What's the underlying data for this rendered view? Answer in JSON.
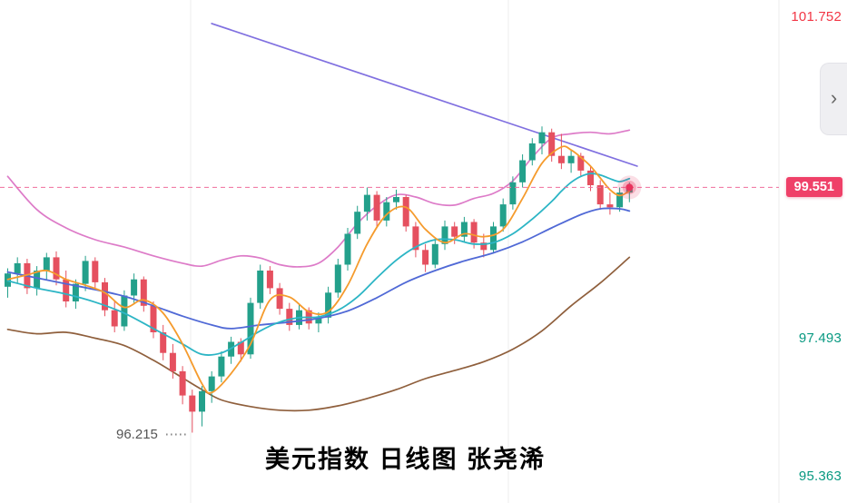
{
  "ui": {
    "chevron": "›"
  },
  "chart_data": {
    "type": "candlestick",
    "title": "美元指数 日线图 张尧浠",
    "current_price": 99.551,
    "price_axis": {
      "visible_labels": [
        {
          "value": 101.752,
          "text": "101.752",
          "color": "#f23645",
          "role": "high"
        },
        {
          "value": 99.551,
          "text": "99.551",
          "color": "#ef4068",
          "role": "current-price-badge"
        },
        {
          "value": 97.493,
          "text": "97.493",
          "color": "#089981",
          "role": "level"
        },
        {
          "value": 95.363,
          "text": "95.363",
          "color": "#089981",
          "role": "level"
        }
      ],
      "low_annotation": {
        "value": 96.215,
        "text": "96.215"
      }
    },
    "style": {
      "up": "#23a08b",
      "down": "#e5505f",
      "grid": "#ececec",
      "current_line": "#f06e9c",
      "dot": "#e8315b",
      "background": "#ffffff"
    },
    "candles": {
      "format": [
        "open",
        "high",
        "low",
        "close"
      ],
      "values": [
        [
          98.2,
          98.45,
          98.05,
          98.38
        ],
        [
          98.38,
          98.6,
          98.25,
          98.52
        ],
        [
          98.52,
          98.58,
          98.1,
          98.18
        ],
        [
          98.18,
          98.48,
          98.08,
          98.42
        ],
        [
          98.42,
          98.66,
          98.3,
          98.6
        ],
        [
          98.6,
          98.68,
          98.22,
          98.3
        ],
        [
          98.3,
          98.42,
          97.92,
          98.0
        ],
        [
          98.0,
          98.3,
          97.9,
          98.24
        ],
        [
          98.24,
          98.62,
          98.14,
          98.55
        ],
        [
          98.55,
          98.6,
          98.18,
          98.26
        ],
        [
          98.26,
          98.32,
          97.8,
          97.88
        ],
        [
          97.88,
          98.0,
          97.58,
          97.66
        ],
        [
          97.66,
          98.15,
          97.6,
          98.08
        ],
        [
          98.08,
          98.38,
          97.98,
          98.3
        ],
        [
          98.3,
          98.34,
          97.86,
          97.94
        ],
        [
          97.94,
          98.0,
          97.5,
          97.58
        ],
        [
          97.58,
          97.68,
          97.2,
          97.3
        ],
        [
          97.3,
          97.42,
          96.95,
          97.05
        ],
        [
          97.05,
          97.12,
          96.6,
          96.72
        ],
        [
          96.72,
          96.8,
          96.215,
          96.5
        ],
        [
          96.5,
          96.85,
          96.3,
          96.78
        ],
        [
          96.78,
          97.05,
          96.62,
          96.98
        ],
        [
          96.98,
          97.32,
          96.9,
          97.25
        ],
        [
          97.25,
          97.52,
          97.15,
          97.45
        ],
        [
          97.45,
          97.5,
          97.18,
          97.28
        ],
        [
          97.28,
          98.05,
          97.22,
          97.98
        ],
        [
          97.98,
          98.5,
          97.9,
          98.42
        ],
        [
          98.42,
          98.48,
          98.1,
          98.18
        ],
        [
          98.18,
          98.25,
          97.82,
          97.9
        ],
        [
          97.9,
          97.98,
          97.6,
          97.68
        ],
        [
          97.68,
          97.95,
          97.62,
          97.88
        ],
        [
          97.88,
          97.92,
          97.62,
          97.7
        ],
        [
          97.7,
          97.85,
          97.58,
          97.78
        ],
        [
          97.78,
          98.2,
          97.7,
          98.12
        ],
        [
          98.12,
          98.58,
          98.05,
          98.5
        ],
        [
          98.5,
          99.0,
          98.42,
          98.92
        ],
        [
          98.92,
          99.3,
          98.85,
          99.22
        ],
        [
          99.22,
          99.55,
          99.1,
          99.45
        ],
        [
          99.45,
          99.5,
          99.0,
          99.1
        ],
        [
          99.1,
          99.42,
          99.02,
          99.35
        ],
        [
          99.35,
          99.52,
          99.25,
          99.42
        ],
        [
          99.42,
          99.45,
          98.95,
          99.02
        ],
        [
          99.02,
          99.08,
          98.6,
          98.7
        ],
        [
          98.7,
          98.78,
          98.4,
          98.5
        ],
        [
          98.5,
          98.85,
          98.45,
          98.78
        ],
        [
          98.78,
          99.1,
          98.7,
          99.02
        ],
        [
          99.02,
          99.08,
          98.78,
          98.88
        ],
        [
          98.88,
          99.15,
          98.8,
          99.08
        ],
        [
          99.08,
          99.12,
          98.72,
          98.8
        ],
        [
          98.8,
          98.92,
          98.6,
          98.7
        ],
        [
          98.7,
          99.08,
          98.65,
          99.02
        ],
        [
          99.02,
          99.4,
          98.95,
          99.32
        ],
        [
          99.32,
          99.7,
          99.25,
          99.62
        ],
        [
          99.62,
          100.0,
          99.55,
          99.92
        ],
        [
          99.92,
          100.22,
          99.85,
          100.15
        ],
        [
          100.15,
          100.38,
          100.0,
          100.3
        ],
        [
          100.3,
          100.35,
          99.9,
          99.98
        ],
        [
          99.98,
          100.28,
          99.8,
          99.88
        ],
        [
          99.88,
          100.05,
          99.75,
          99.98
        ],
        [
          99.98,
          100.02,
          99.7,
          99.78
        ],
        [
          99.78,
          99.85,
          99.5,
          99.58
        ],
        [
          99.58,
          99.65,
          99.25,
          99.32
        ],
        [
          99.32,
          99.48,
          99.18,
          99.28
        ],
        [
          99.28,
          99.55,
          99.22,
          99.48
        ],
        [
          99.48,
          99.62,
          99.35,
          99.551
        ]
      ]
    },
    "overlays": [
      {
        "name": "bollinger-lower",
        "color": "#8f5f3c",
        "width": 1.7,
        "points": [
          [
            0,
            97.62
          ],
          [
            3,
            97.56
          ],
          [
            6,
            97.58
          ],
          [
            9,
            97.5
          ],
          [
            12,
            97.4
          ],
          [
            15,
            97.2
          ],
          [
            18,
            96.96
          ],
          [
            20,
            96.8
          ],
          [
            22,
            96.66
          ],
          [
            25,
            96.57
          ],
          [
            28,
            96.52
          ],
          [
            31,
            96.52
          ],
          [
            34,
            96.58
          ],
          [
            37,
            96.68
          ],
          [
            40,
            96.8
          ],
          [
            43,
            96.95
          ],
          [
            46,
            97.06
          ],
          [
            49,
            97.18
          ],
          [
            52,
            97.35
          ],
          [
            55,
            97.6
          ],
          [
            58,
            97.94
          ],
          [
            61,
            98.25
          ],
          [
            64,
            98.6
          ]
        ]
      },
      {
        "name": "bollinger-upper",
        "color": "#dd7bc8",
        "width": 1.7,
        "points": [
          [
            0,
            99.7
          ],
          [
            3,
            99.25
          ],
          [
            6,
            99.0
          ],
          [
            9,
            98.84
          ],
          [
            12,
            98.74
          ],
          [
            15,
            98.62
          ],
          [
            18,
            98.52
          ],
          [
            20,
            98.48
          ],
          [
            22,
            98.56
          ],
          [
            24,
            98.62
          ],
          [
            26,
            98.59
          ],
          [
            28,
            98.5
          ],
          [
            30,
            98.47
          ],
          [
            32,
            98.52
          ],
          [
            34,
            98.74
          ],
          [
            36,
            99.06
          ],
          [
            38,
            99.3
          ],
          [
            40,
            99.45
          ],
          [
            42,
            99.42
          ],
          [
            44,
            99.33
          ],
          [
            46,
            99.31
          ],
          [
            48,
            99.4
          ],
          [
            50,
            99.47
          ],
          [
            52,
            99.64
          ],
          [
            54,
            99.96
          ],
          [
            56,
            100.22
          ],
          [
            58,
            100.28
          ],
          [
            60,
            100.3
          ],
          [
            62,
            100.28
          ],
          [
            64,
            100.33
          ]
        ]
      },
      {
        "name": "descending-trendline",
        "color": "#8070e0",
        "width": 1.7,
        "points": [
          [
            21,
            101.78
          ],
          [
            42,
            100.85
          ],
          [
            64.8,
            99.84
          ]
        ]
      },
      {
        "name": "ma-slow-blue",
        "color": "#5069d6",
        "width": 1.8,
        "points": [
          [
            0,
            98.4
          ],
          [
            3,
            98.32
          ],
          [
            6,
            98.24
          ],
          [
            9,
            98.16
          ],
          [
            12,
            98.07
          ],
          [
            15,
            97.94
          ],
          [
            18,
            97.8
          ],
          [
            21,
            97.68
          ],
          [
            23,
            97.63
          ],
          [
            26,
            97.68
          ],
          [
            29,
            97.72
          ],
          [
            32,
            97.77
          ],
          [
            35,
            97.87
          ],
          [
            38,
            98.05
          ],
          [
            41,
            98.26
          ],
          [
            44,
            98.42
          ],
          [
            47,
            98.55
          ],
          [
            50,
            98.66
          ],
          [
            53,
            98.81
          ],
          [
            56,
            99.0
          ],
          [
            59,
            99.18
          ],
          [
            61,
            99.26
          ],
          [
            63,
            99.26
          ],
          [
            64,
            99.23
          ]
        ]
      },
      {
        "name": "ma-mid-cyan",
        "color": "#2cb5c5",
        "width": 1.8,
        "points": [
          [
            0,
            98.28
          ],
          [
            3,
            98.18
          ],
          [
            6,
            98.1
          ],
          [
            9,
            97.99
          ],
          [
            12,
            97.84
          ],
          [
            15,
            97.63
          ],
          [
            18,
            97.42
          ],
          [
            20,
            97.28
          ],
          [
            22,
            97.3
          ],
          [
            24,
            97.44
          ],
          [
            26,
            97.6
          ],
          [
            28,
            97.72
          ],
          [
            30,
            97.78
          ],
          [
            32,
            97.79
          ],
          [
            34,
            97.88
          ],
          [
            36,
            98.06
          ],
          [
            38,
            98.32
          ],
          [
            40,
            98.56
          ],
          [
            42,
            98.74
          ],
          [
            44,
            98.84
          ],
          [
            46,
            98.84
          ],
          [
            48,
            98.78
          ],
          [
            50,
            98.8
          ],
          [
            52,
            98.92
          ],
          [
            54,
            99.12
          ],
          [
            56,
            99.36
          ],
          [
            57,
            99.5
          ],
          [
            58,
            99.62
          ],
          [
            59,
            99.7
          ],
          [
            60,
            99.74
          ],
          [
            61,
            99.72
          ],
          [
            62,
            99.67
          ],
          [
            63,
            99.63
          ],
          [
            64,
            99.67
          ]
        ]
      },
      {
        "name": "ma-fast-orange",
        "color": "#f59b2d",
        "width": 1.8,
        "points": [
          [
            0,
            98.3
          ],
          [
            2,
            98.36
          ],
          [
            4,
            98.42
          ],
          [
            6,
            98.3
          ],
          [
            8,
            98.22
          ],
          [
            10,
            98.12
          ],
          [
            12,
            97.92
          ],
          [
            14,
            98.02
          ],
          [
            16,
            97.84
          ],
          [
            18,
            97.42
          ],
          [
            20,
            96.88
          ],
          [
            21,
            96.76
          ],
          [
            23,
            97.02
          ],
          [
            25,
            97.42
          ],
          [
            27,
            98.02
          ],
          [
            29,
            98.06
          ],
          [
            31,
            97.86
          ],
          [
            33,
            97.86
          ],
          [
            35,
            98.22
          ],
          [
            37,
            98.78
          ],
          [
            39,
            99.18
          ],
          [
            41,
            99.28
          ],
          [
            43,
            98.98
          ],
          [
            45,
            98.8
          ],
          [
            47,
            98.92
          ],
          [
            49,
            98.88
          ],
          [
            51,
            98.98
          ],
          [
            53,
            99.4
          ],
          [
            55,
            99.88
          ],
          [
            57,
            100.1
          ],
          [
            58,
            100.06
          ],
          [
            59,
            99.96
          ],
          [
            60,
            99.84
          ],
          [
            61,
            99.68
          ],
          [
            62,
            99.52
          ],
          [
            63,
            99.44
          ],
          [
            64,
            99.5
          ]
        ]
      }
    ]
  }
}
